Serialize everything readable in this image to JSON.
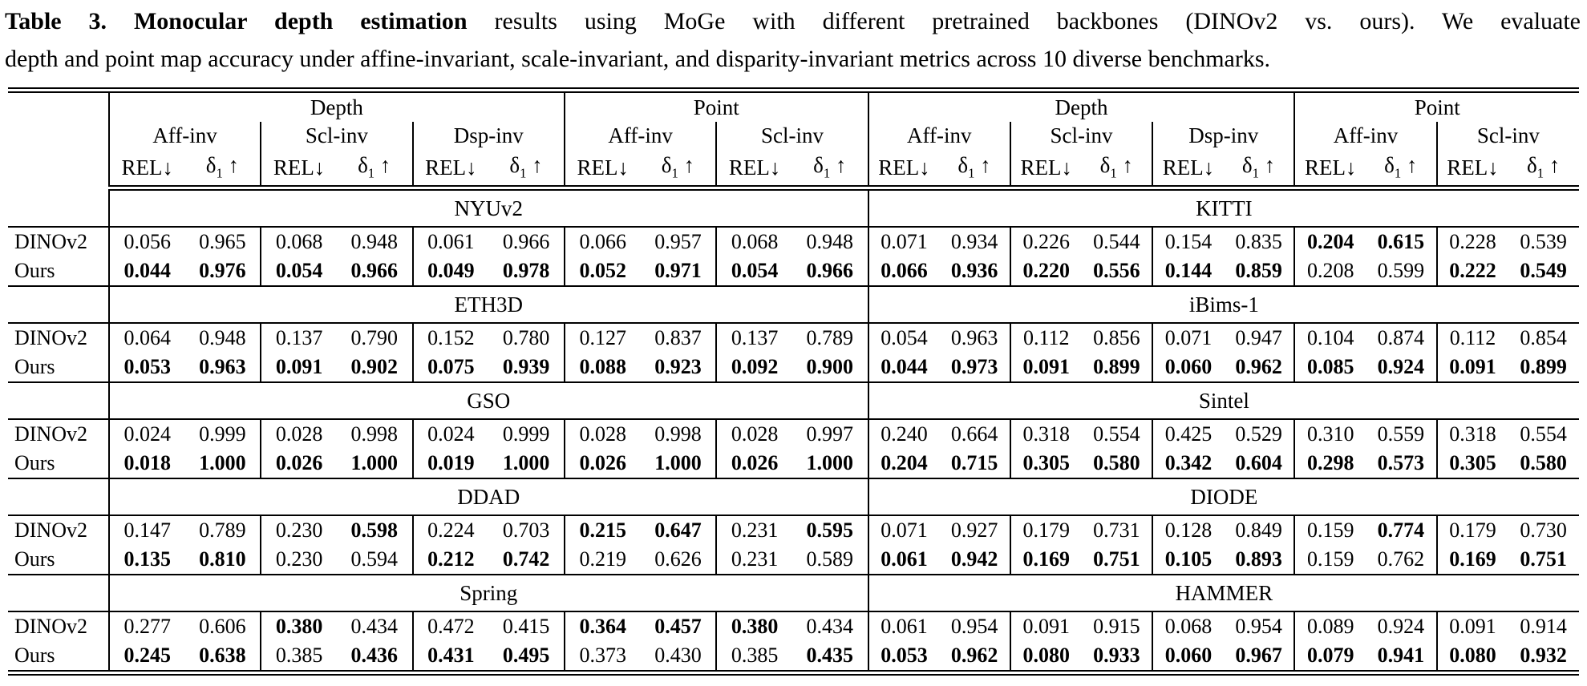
{
  "caption": {
    "tag": "Table 3.",
    "bold_lead": "Monocular depth estimation",
    "line1_rest": " results using MoGe with different pretrained backbones (DINOv2 vs. ours). We evaluate",
    "line2": "depth and point map accuracy under affine-invariant, scale-invariant, and disparity-invariant metrics across 10 diverse benchmarks."
  },
  "table": {
    "top_groups": [
      {
        "label": "Depth",
        "span": 3
      },
      {
        "label": "Point",
        "span": 2
      }
    ],
    "sub_groups": [
      "Aff-inv",
      "Scl-inv",
      "Dsp-inv",
      "Aff-inv",
      "Scl-inv"
    ],
    "metric_rel": "REL↓",
    "metric_delta": "δ1 ↑",
    "row_labels": [
      "DINOv2",
      "Ours"
    ],
    "sections": [
      {
        "left_name": "NYUv2",
        "right_name": "KITTI",
        "rows": [
          {
            "label": "DINOv2",
            "left": [
              "0.056",
              "0.965",
              "0.068",
              "0.948",
              "0.061",
              "0.966",
              "0.066",
              "0.957",
              "0.068",
              "0.948"
            ],
            "left_bold": [
              0,
              0,
              0,
              0,
              0,
              0,
              0,
              0,
              0,
              0
            ],
            "right": [
              "0.071",
              "0.934",
              "0.226",
              "0.544",
              "0.154",
              "0.835",
              "0.204",
              "0.615",
              "0.228",
              "0.539"
            ],
            "right_bold": [
              0,
              0,
              0,
              0,
              0,
              0,
              1,
              1,
              0,
              0
            ]
          },
          {
            "label": "Ours",
            "left": [
              "0.044",
              "0.976",
              "0.054",
              "0.966",
              "0.049",
              "0.978",
              "0.052",
              "0.971",
              "0.054",
              "0.966"
            ],
            "left_bold": [
              1,
              1,
              1,
              1,
              1,
              1,
              1,
              1,
              1,
              1
            ],
            "right": [
              "0.066",
              "0.936",
              "0.220",
              "0.556",
              "0.144",
              "0.859",
              "0.208",
              "0.599",
              "0.222",
              "0.549"
            ],
            "right_bold": [
              1,
              1,
              1,
              1,
              1,
              1,
              0,
              0,
              1,
              1
            ]
          }
        ]
      },
      {
        "left_name": "ETH3D",
        "right_name": "iBims-1",
        "rows": [
          {
            "label": "DINOv2",
            "left": [
              "0.064",
              "0.948",
              "0.137",
              "0.790",
              "0.152",
              "0.780",
              "0.127",
              "0.837",
              "0.137",
              "0.789"
            ],
            "left_bold": [
              0,
              0,
              0,
              0,
              0,
              0,
              0,
              0,
              0,
              0
            ],
            "right": [
              "0.054",
              "0.963",
              "0.112",
              "0.856",
              "0.071",
              "0.947",
              "0.104",
              "0.874",
              "0.112",
              "0.854"
            ],
            "right_bold": [
              0,
              0,
              0,
              0,
              0,
              0,
              0,
              0,
              0,
              0
            ]
          },
          {
            "label": "Ours",
            "left": [
              "0.053",
              "0.963",
              "0.091",
              "0.902",
              "0.075",
              "0.939",
              "0.088",
              "0.923",
              "0.092",
              "0.900"
            ],
            "left_bold": [
              1,
              1,
              1,
              1,
              1,
              1,
              1,
              1,
              1,
              1
            ],
            "right": [
              "0.044",
              "0.973",
              "0.091",
              "0.899",
              "0.060",
              "0.962",
              "0.085",
              "0.924",
              "0.091",
              "0.899"
            ],
            "right_bold": [
              1,
              1,
              1,
              1,
              1,
              1,
              1,
              1,
              1,
              1
            ]
          }
        ]
      },
      {
        "left_name": "GSO",
        "right_name": "Sintel",
        "rows": [
          {
            "label": "DINOv2",
            "left": [
              "0.024",
              "0.999",
              "0.028",
              "0.998",
              "0.024",
              "0.999",
              "0.028",
              "0.998",
              "0.028",
              "0.997"
            ],
            "left_bold": [
              0,
              0,
              0,
              0,
              0,
              0,
              0,
              0,
              0,
              0
            ],
            "right": [
              "0.240",
              "0.664",
              "0.318",
              "0.554",
              "0.425",
              "0.529",
              "0.310",
              "0.559",
              "0.318",
              "0.554"
            ],
            "right_bold": [
              0,
              0,
              0,
              0,
              0,
              0,
              0,
              0,
              0,
              0
            ]
          },
          {
            "label": "Ours",
            "left": [
              "0.018",
              "1.000",
              "0.026",
              "1.000",
              "0.019",
              "1.000",
              "0.026",
              "1.000",
              "0.026",
              "1.000"
            ],
            "left_bold": [
              1,
              1,
              1,
              1,
              1,
              1,
              1,
              1,
              1,
              1
            ],
            "right": [
              "0.204",
              "0.715",
              "0.305",
              "0.580",
              "0.342",
              "0.604",
              "0.298",
              "0.573",
              "0.305",
              "0.580"
            ],
            "right_bold": [
              1,
              1,
              1,
              1,
              1,
              1,
              1,
              1,
              1,
              1
            ]
          }
        ]
      },
      {
        "left_name": "DDAD",
        "right_name": "DIODE",
        "rows": [
          {
            "label": "DINOv2",
            "left": [
              "0.147",
              "0.789",
              "0.230",
              "0.598",
              "0.224",
              "0.703",
              "0.215",
              "0.647",
              "0.231",
              "0.595"
            ],
            "left_bold": [
              0,
              0,
              0,
              1,
              0,
              0,
              1,
              1,
              0,
              1
            ],
            "right": [
              "0.071",
              "0.927",
              "0.179",
              "0.731",
              "0.128",
              "0.849",
              "0.159",
              "0.774",
              "0.179",
              "0.730"
            ],
            "right_bold": [
              0,
              0,
              0,
              0,
              0,
              0,
              0,
              1,
              0,
              0
            ]
          },
          {
            "label": "Ours",
            "left": [
              "0.135",
              "0.810",
              "0.230",
              "0.594",
              "0.212",
              "0.742",
              "0.219",
              "0.626",
              "0.231",
              "0.589"
            ],
            "left_bold": [
              1,
              1,
              0,
              0,
              1,
              1,
              0,
              0,
              0,
              0
            ],
            "right": [
              "0.061",
              "0.942",
              "0.169",
              "0.751",
              "0.105",
              "0.893",
              "0.159",
              "0.762",
              "0.169",
              "0.751"
            ],
            "right_bold": [
              1,
              1,
              1,
              1,
              1,
              1,
              0,
              0,
              1,
              1
            ]
          }
        ]
      },
      {
        "left_name": "Spring",
        "right_name": "HAMMER",
        "rows": [
          {
            "label": "DINOv2",
            "left": [
              "0.277",
              "0.606",
              "0.380",
              "0.434",
              "0.472",
              "0.415",
              "0.364",
              "0.457",
              "0.380",
              "0.434"
            ],
            "left_bold": [
              0,
              0,
              1,
              0,
              0,
              0,
              1,
              1,
              1,
              0
            ],
            "right": [
              "0.061",
              "0.954",
              "0.091",
              "0.915",
              "0.068",
              "0.954",
              "0.089",
              "0.924",
              "0.091",
              "0.914"
            ],
            "right_bold": [
              0,
              0,
              0,
              0,
              0,
              0,
              0,
              0,
              0,
              0
            ]
          },
          {
            "label": "Ours",
            "left": [
              "0.245",
              "0.638",
              "0.385",
              "0.436",
              "0.431",
              "0.495",
              "0.373",
              "0.430",
              "0.385",
              "0.435"
            ],
            "left_bold": [
              1,
              1,
              0,
              1,
              1,
              1,
              0,
              0,
              0,
              1
            ],
            "right": [
              "0.053",
              "0.962",
              "0.080",
              "0.933",
              "0.060",
              "0.967",
              "0.079",
              "0.941",
              "0.080",
              "0.932"
            ],
            "right_bold": [
              1,
              1,
              1,
              1,
              1,
              1,
              1,
              1,
              1,
              1
            ]
          }
        ]
      }
    ]
  }
}
